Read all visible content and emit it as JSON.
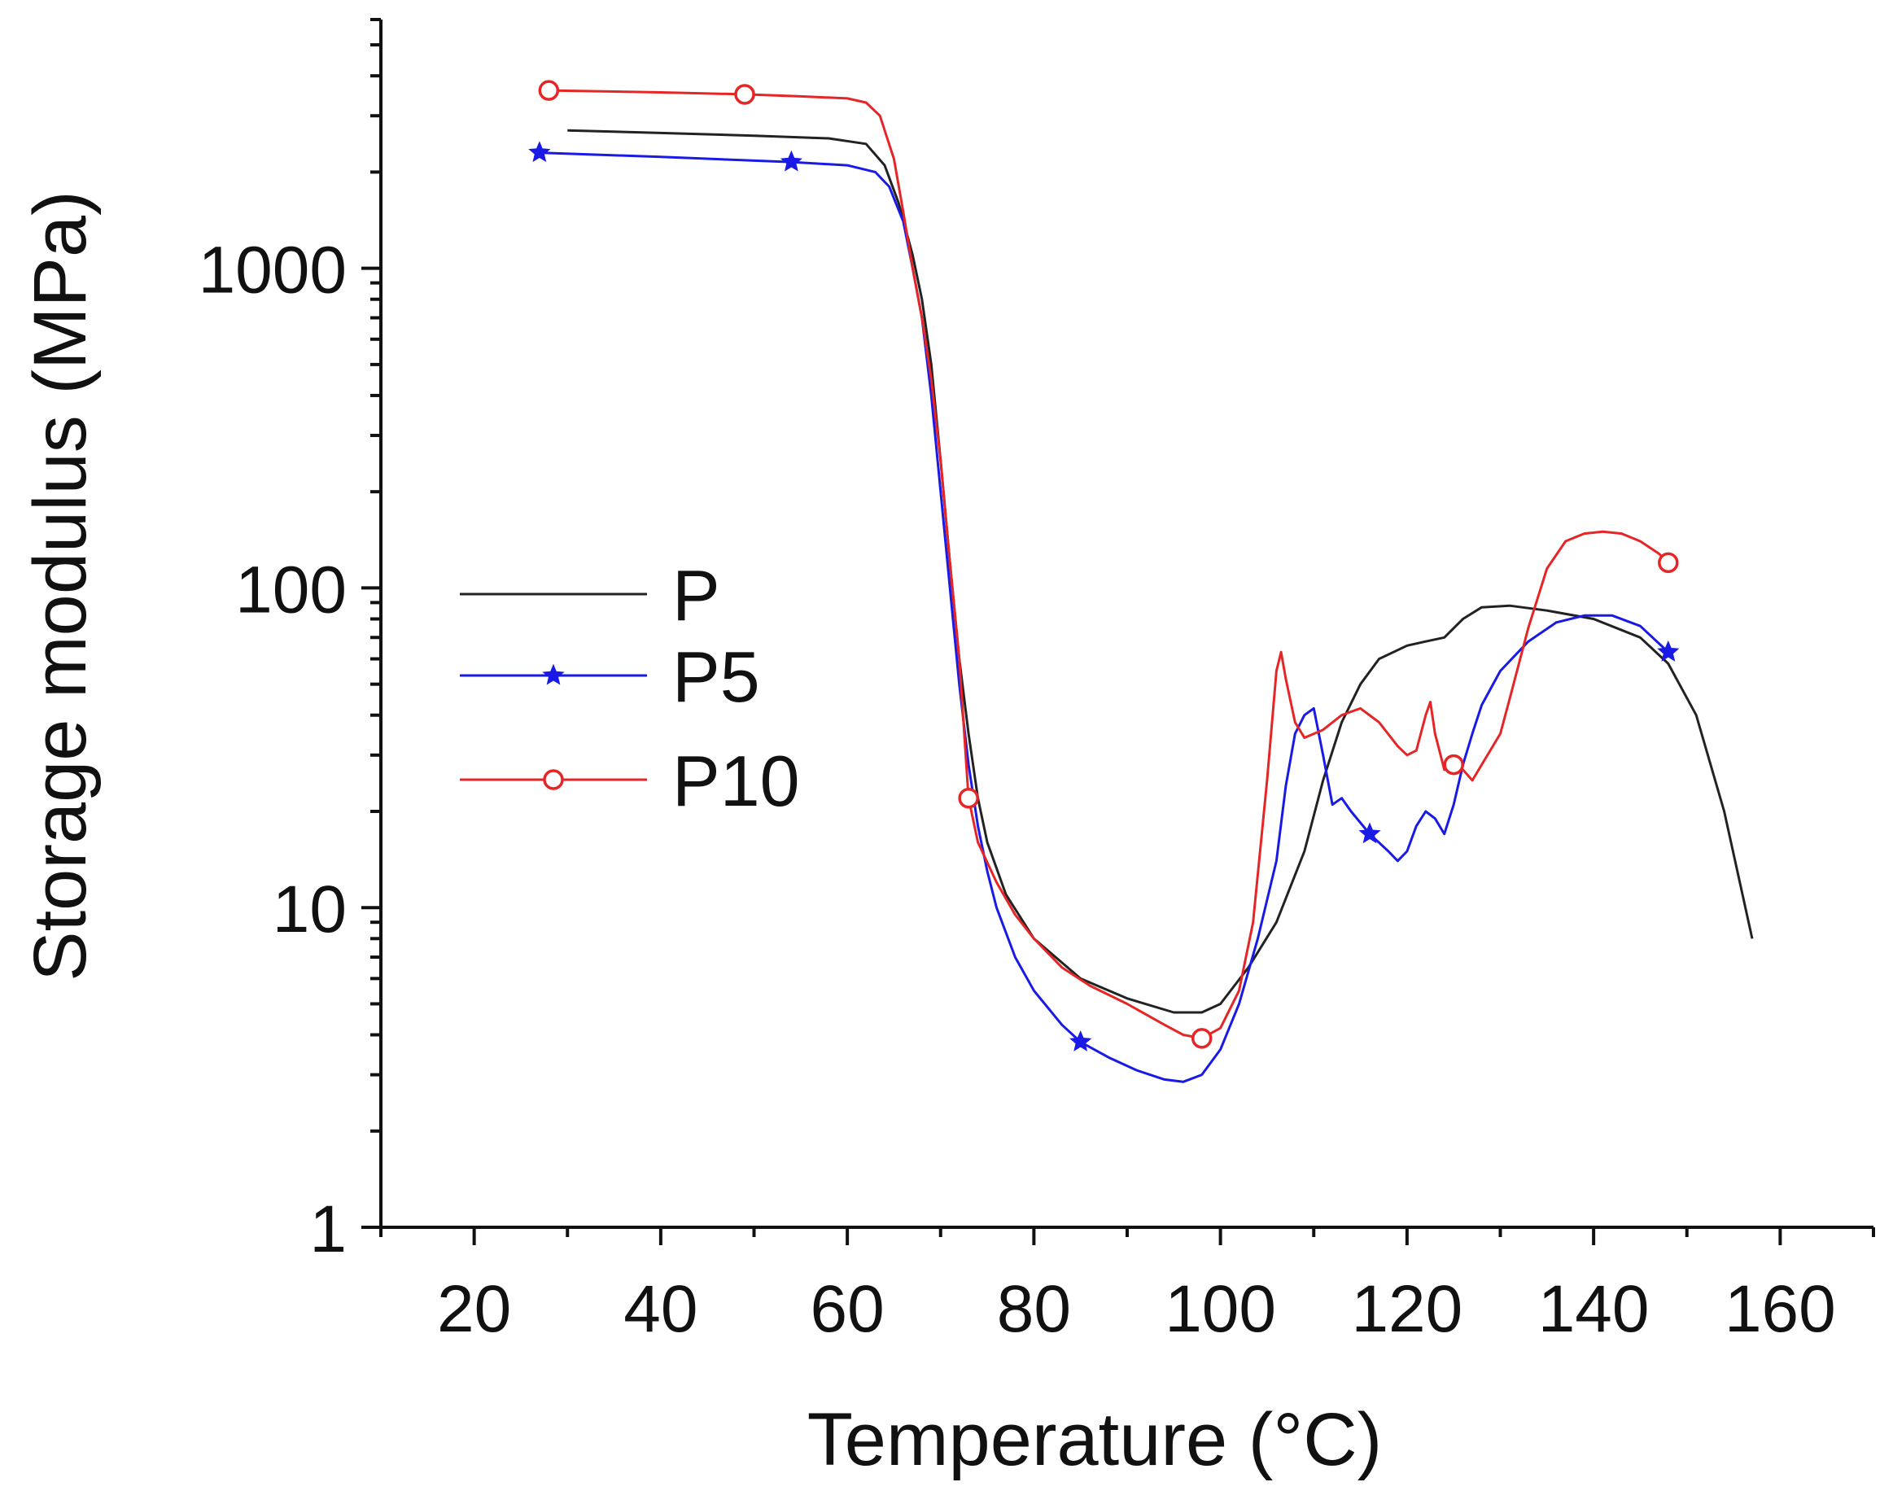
{
  "chart_data": {
    "type": "line",
    "title": "",
    "xlabel": "Temperature (°C)",
    "ylabel": "Storage modulus (MPa)",
    "xlim": [
      10,
      170
    ],
    "ylim": [
      1,
      6000
    ],
    "yscale": "log",
    "x_ticks": [
      20,
      40,
      60,
      80,
      100,
      120,
      140,
      160
    ],
    "y_ticks": [
      1,
      10,
      100,
      1000
    ],
    "grid": false,
    "legend": "center-left",
    "series": [
      {
        "name": "P",
        "color": "#222222",
        "marker": "none",
        "points": [
          [
            30,
            2700
          ],
          [
            40,
            2650
          ],
          [
            50,
            2600
          ],
          [
            58,
            2550
          ],
          [
            62,
            2450
          ],
          [
            64,
            2100
          ],
          [
            65.5,
            1600
          ],
          [
            67,
            1100
          ],
          [
            68,
            800
          ],
          [
            69,
            500
          ],
          [
            70,
            250
          ],
          [
            71,
            120
          ],
          [
            72,
            60
          ],
          [
            73,
            35
          ],
          [
            74,
            22
          ],
          [
            75,
            16
          ],
          [
            77,
            11
          ],
          [
            80,
            8
          ],
          [
            85,
            6
          ],
          [
            90,
            5.2
          ],
          [
            95,
            4.7
          ],
          [
            98,
            4.7
          ],
          [
            100,
            5
          ],
          [
            103,
            6.5
          ],
          [
            106,
            9
          ],
          [
            109,
            15
          ],
          [
            111,
            25
          ],
          [
            113,
            38
          ],
          [
            115,
            50
          ],
          [
            117,
            60
          ],
          [
            120,
            66
          ],
          [
            122,
            68
          ],
          [
            124,
            70
          ],
          [
            126,
            80
          ],
          [
            128,
            87
          ],
          [
            131,
            88
          ],
          [
            135,
            85
          ],
          [
            140,
            80
          ],
          [
            145,
            70
          ],
          [
            148,
            58
          ],
          [
            151,
            40
          ],
          [
            154,
            20
          ],
          [
            157,
            8
          ]
        ]
      },
      {
        "name": "P5",
        "color": "#1a1ae6",
        "marker": "star",
        "marker_points": [
          [
            27,
            2300
          ],
          [
            54,
            2150
          ],
          [
            85,
            3.8
          ],
          [
            116,
            17
          ],
          [
            148,
            63
          ]
        ],
        "points": [
          [
            27,
            2300
          ],
          [
            40,
            2230
          ],
          [
            54,
            2150
          ],
          [
            60,
            2100
          ],
          [
            63,
            2000
          ],
          [
            64.5,
            1800
          ],
          [
            66,
            1400
          ],
          [
            67,
            1000
          ],
          [
            68,
            700
          ],
          [
            69,
            400
          ],
          [
            70,
            200
          ],
          [
            71,
            100
          ],
          [
            72,
            50
          ],
          [
            73,
            28
          ],
          [
            74,
            18
          ],
          [
            75,
            13
          ],
          [
            76,
            10
          ],
          [
            78,
            7
          ],
          [
            80,
            5.5
          ],
          [
            83,
            4.3
          ],
          [
            85,
            3.8
          ],
          [
            88,
            3.4
          ],
          [
            91,
            3.1
          ],
          [
            94,
            2.9
          ],
          [
            96,
            2.85
          ],
          [
            98,
            3
          ],
          [
            100,
            3.6
          ],
          [
            102,
            5
          ],
          [
            104,
            8
          ],
          [
            106,
            14
          ],
          [
            107,
            24
          ],
          [
            108,
            35
          ],
          [
            109,
            40
          ],
          [
            110,
            42
          ],
          [
            111,
            30
          ],
          [
            112,
            21
          ],
          [
            113,
            22
          ],
          [
            114,
            20
          ],
          [
            116,
            17
          ],
          [
            118,
            15
          ],
          [
            119,
            14
          ],
          [
            120,
            15
          ],
          [
            121,
            18
          ],
          [
            122,
            20
          ],
          [
            123,
            19
          ],
          [
            124,
            17
          ],
          [
            125,
            21
          ],
          [
            126,
            28
          ],
          [
            127,
            35
          ],
          [
            128,
            43
          ],
          [
            130,
            55
          ],
          [
            133,
            68
          ],
          [
            136,
            78
          ],
          [
            139,
            82
          ],
          [
            142,
            82
          ],
          [
            145,
            76
          ],
          [
            148,
            63
          ]
        ]
      },
      {
        "name": "P10",
        "color": "#e62626",
        "marker": "circle",
        "marker_points": [
          [
            28,
            3600
          ],
          [
            49,
            3500
          ],
          [
            73,
            22
          ],
          [
            98,
            3.9
          ],
          [
            125,
            28
          ],
          [
            148,
            120
          ]
        ],
        "points": [
          [
            28,
            3600
          ],
          [
            40,
            3550
          ],
          [
            49,
            3500
          ],
          [
            55,
            3450
          ],
          [
            60,
            3400
          ],
          [
            62,
            3300
          ],
          [
            63.5,
            3000
          ],
          [
            65,
            2200
          ],
          [
            66,
            1500
          ],
          [
            67,
            1000
          ],
          [
            68,
            700
          ],
          [
            69,
            450
          ],
          [
            70,
            250
          ],
          [
            71,
            120
          ],
          [
            72,
            60
          ],
          [
            73,
            22
          ],
          [
            74,
            16
          ],
          [
            76,
            12
          ],
          [
            78,
            9.5
          ],
          [
            80,
            8
          ],
          [
            83,
            6.5
          ],
          [
            86,
            5.7
          ],
          [
            90,
            5
          ],
          [
            94,
            4.3
          ],
          [
            96,
            4
          ],
          [
            98,
            3.9
          ],
          [
            100,
            4.2
          ],
          [
            102,
            5.5
          ],
          [
            103.5,
            9
          ],
          [
            105,
            25
          ],
          [
            106,
            55
          ],
          [
            106.5,
            63
          ],
          [
            107,
            52
          ],
          [
            108,
            38
          ],
          [
            109,
            34
          ],
          [
            111,
            36
          ],
          [
            113,
            40
          ],
          [
            115,
            42
          ],
          [
            117,
            38
          ],
          [
            119,
            32
          ],
          [
            120,
            30
          ],
          [
            121,
            31
          ],
          [
            122,
            40
          ],
          [
            122.5,
            44
          ],
          [
            123,
            35
          ],
          [
            124,
            27
          ],
          [
            125,
            28
          ],
          [
            126,
            27
          ],
          [
            127,
            25
          ],
          [
            128,
            28
          ],
          [
            130,
            35
          ],
          [
            131,
            45
          ],
          [
            133,
            75
          ],
          [
            135,
            115
          ],
          [
            137,
            140
          ],
          [
            139,
            148
          ],
          [
            141,
            150
          ],
          [
            143,
            148
          ],
          [
            145,
            140
          ],
          [
            147,
            128
          ],
          [
            148,
            120
          ]
        ]
      }
    ]
  }
}
